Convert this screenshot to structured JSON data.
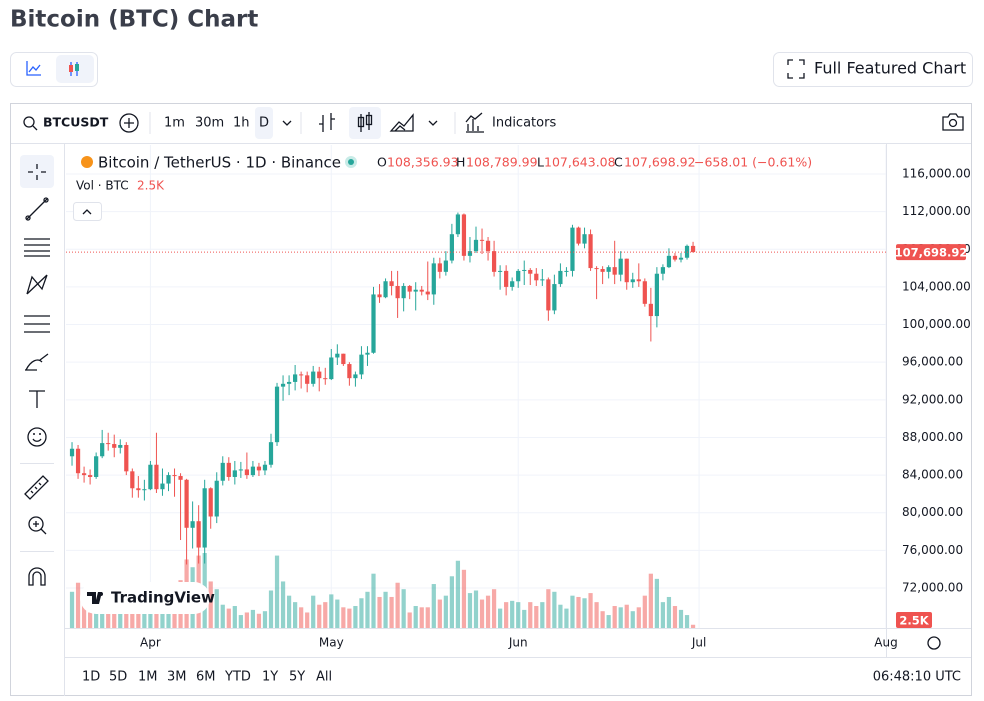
{
  "page": {
    "title": "Bitcoin (BTC) Chart",
    "full_chart_button": "Full Featured Chart",
    "toolbar": {
      "symbol": "BTCUSDT",
      "intervals": [
        "1m",
        "30m",
        "1h",
        "D"
      ],
      "indicators": "Indicators"
    },
    "ranges": [
      "1D",
      "5D",
      "1M",
      "3M",
      "6M",
      "YTD",
      "1Y",
      "5Y",
      "All"
    ],
    "clock": "06:48:10 UTC"
  },
  "chart_data": {
    "type": "candlestick",
    "title": "Bitcoin / TetherUS · 1D · Binance",
    "ohlc_labels": [
      {
        "key": "O",
        "value": "108,356.93"
      },
      {
        "key": "H",
        "value": "108,789.99"
      },
      {
        "key": "L",
        "value": "107,643.08"
      },
      {
        "key": "C",
        "value": "107,698.92"
      }
    ],
    "change_label": "−658.01 (−0.61%)",
    "volume_title": "Vol · BTC",
    "volume_label": "2.5K",
    "last_price_label": "107,698.92",
    "watermark": "TradingView",
    "up_color": "#26a69a",
    "down_color": "#ef5350",
    "grid": true,
    "open": [
      86000,
      86800,
      84200,
      84000,
      83800,
      86000,
      87400,
      87300,
      86900,
      87200,
      84400,
      82600,
      82400,
      82500,
      85100,
      82500,
      83100,
      84000,
      83900,
      83500,
      78400,
      79100,
      76300,
      82600,
      79600,
      83400,
      85300,
      83800,
      84500,
      84600,
      84000,
      84900,
      84500,
      85100,
      87500,
      93400,
      93700,
      93900,
      94700,
      94600,
      93700,
      95000,
      94300,
      94200,
      96500,
      96900,
      95800,
      94300,
      94700,
      96800,
      97000,
      103200,
      102900,
      104600,
      104100,
      102800,
      104100,
      103500,
      103700,
      103500,
      103200,
      106500,
      105600,
      106800,
      109600,
      111700,
      107300,
      107800,
      109000,
      108900,
      107800,
      105600,
      105700,
      104000,
      104600,
      105700,
      105800,
      105400,
      104700,
      104800,
      101500,
      104300,
      105700,
      105700,
      110300,
      108600,
      109600,
      106000,
      105900,
      105600,
      106100,
      105300,
      107000,
      104500,
      104800,
      104600,
      102200,
      100900,
      105400,
      106100,
      107300,
      106900,
      107100,
      108356.93
    ],
    "high": [
      87500,
      87200,
      84900,
      84600,
      86400,
      88800,
      88500,
      88300,
      87800,
      87500,
      84700,
      83900,
      83500,
      85500,
      88500,
      84700,
      84300,
      84700,
      84200,
      83600,
      81200,
      80800,
      83500,
      82700,
      84300,
      86000,
      85900,
      85500,
      85400,
      86400,
      85500,
      85300,
      85500,
      88400,
      93800,
      94600,
      94600,
      95700,
      95000,
      95000,
      95600,
      95500,
      95400,
      97400,
      97900,
      96900,
      96000,
      95000,
      97700,
      97700,
      104000,
      104300,
      104900,
      105700,
      105700,
      104400,
      104200,
      104500,
      104100,
      106700,
      107100,
      107100,
      107800,
      110700,
      111900,
      111800,
      109300,
      110400,
      110200,
      109300,
      108900,
      106300,
      106300,
      105000,
      105900,
      106800,
      106000,
      106000,
      105900,
      105000,
      105300,
      106500,
      106100,
      110600,
      110400,
      110300,
      110100,
      106200,
      106200,
      106300,
      108900,
      107800,
      107000,
      105500,
      106500,
      104900,
      103900,
      106100,
      106400,
      108100,
      107600,
      107600,
      108500,
      108789.99
    ],
    "low": [
      85000,
      83600,
      83200,
      83000,
      83600,
      85800,
      86600,
      85900,
      86300,
      84000,
      81600,
      81600,
      81300,
      82400,
      82100,
      81800,
      82300,
      81700,
      77100,
      74500,
      76200,
      74600,
      74600,
      78300,
      78900,
      82900,
      83400,
      83000,
      83700,
      83600,
      83800,
      83900,
      84000,
      84800,
      87100,
      91900,
      92500,
      93000,
      93200,
      92800,
      93400,
      92900,
      93600,
      94100,
      95700,
      95600,
      93500,
      93400,
      94200,
      95600,
      96900,
      102300,
      102800,
      103100,
      100700,
      101400,
      102700,
      101500,
      103100,
      102600,
      102100,
      104900,
      105200,
      106500,
      109300,
      106800,
      106600,
      107600,
      107500,
      106800,
      105100,
      103700,
      103100,
      103600,
      103900,
      104200,
      104200,
      104100,
      104100,
      100400,
      101100,
      104000,
      105100,
      105100,
      108400,
      108100,
      105700,
      102700,
      104300,
      104900,
      104300,
      104600,
      103700,
      103900,
      104000,
      101900,
      98200,
      99700,
      104700,
      106000,
      106700,
      106600,
      106900,
      107643.08
    ],
    "close": [
      86800,
      84200,
      84000,
      83800,
      86000,
      87400,
      87300,
      86900,
      87200,
      84400,
      82600,
      82400,
      82500,
      85100,
      82500,
      83100,
      84000,
      83900,
      83500,
      78400,
      79100,
      76300,
      82600,
      79600,
      83400,
      85300,
      83800,
      84500,
      84600,
      84000,
      84900,
      84500,
      85100,
      87500,
      93400,
      93700,
      93900,
      94700,
      94600,
      93700,
      95000,
      94300,
      94200,
      96500,
      96900,
      95800,
      94300,
      94700,
      96800,
      97000,
      103200,
      102900,
      104600,
      104100,
      102800,
      104100,
      103500,
      103700,
      103500,
      103200,
      106500,
      105600,
      106800,
      109600,
      111700,
      107300,
      107800,
      109000,
      108900,
      107800,
      105600,
      105700,
      104000,
      104600,
      105700,
      105800,
      105400,
      104700,
      104800,
      101500,
      104300,
      105700,
      105700,
      110300,
      108600,
      109600,
      106000,
      105900,
      105600,
      106100,
      105300,
      107000,
      104500,
      104800,
      104600,
      102200,
      100900,
      105400,
      106100,
      107300,
      106900,
      107100,
      108360,
      107698.92
    ],
    "volume": [
      28000,
      35000,
      22000,
      12000,
      20000,
      23000,
      18000,
      17000,
      15000,
      25000,
      30000,
      24000,
      13000,
      22000,
      30000,
      21000,
      15000,
      18000,
      37000,
      53000,
      47000,
      56000,
      58000,
      36000,
      30000,
      18000,
      15000,
      17000,
      10000,
      12000,
      14000,
      11000,
      13000,
      29000,
      56000,
      36000,
      25000,
      20000,
      16000,
      12000,
      25000,
      18000,
      20000,
      26000,
      22000,
      16000,
      15000,
      17000,
      23000,
      28000,
      42000,
      24000,
      28000,
      24000,
      35000,
      30000,
      12000,
      17000,
      16000,
      16000,
      34000,
      22000,
      25000,
      40000,
      52000,
      45000,
      27000,
      29000,
      22000,
      25000,
      30000,
      15000,
      20000,
      21000,
      20000,
      14000,
      20000,
      17000,
      20000,
      30000,
      28000,
      18000,
      15000,
      25000,
      24000,
      23000,
      27000,
      20000,
      13000,
      10000,
      17000,
      16000,
      18000,
      13000,
      16000,
      25000,
      42000,
      38000,
      20000,
      24000,
      17000,
      14000,
      10000,
      2500
    ],
    "ylim": [
      67750,
      119080
    ],
    "yticks": [
      {
        "value": 72000,
        "label": "72,000.00"
      },
      {
        "value": 76000,
        "label": "76,000.00"
      },
      {
        "value": 80000,
        "label": "80,000.00"
      },
      {
        "value": 84000,
        "label": "84,000.00"
      },
      {
        "value": 88000,
        "label": "88,000.00"
      },
      {
        "value": 92000,
        "label": "92,000.00"
      },
      {
        "value": 96000,
        "label": "96,000.00"
      },
      {
        "value": 100000,
        "label": "100,000.00"
      },
      {
        "value": 104000,
        "label": "104,000.00"
      },
      {
        "value": 108000,
        "label": "108,000.00"
      },
      {
        "value": 112000,
        "label": "112,000.00"
      },
      {
        "value": 116000,
        "label": "116,000.00"
      }
    ],
    "xlim": [
      -1,
      135
    ],
    "xticks": [
      {
        "value": 13,
        "label": "Apr"
      },
      {
        "value": 43,
        "label": "May"
      },
      {
        "value": 74,
        "label": "Jun"
      },
      {
        "value": 104,
        "label": "Jul"
      },
      {
        "value": 135,
        "label": "Aug"
      }
    ]
  }
}
